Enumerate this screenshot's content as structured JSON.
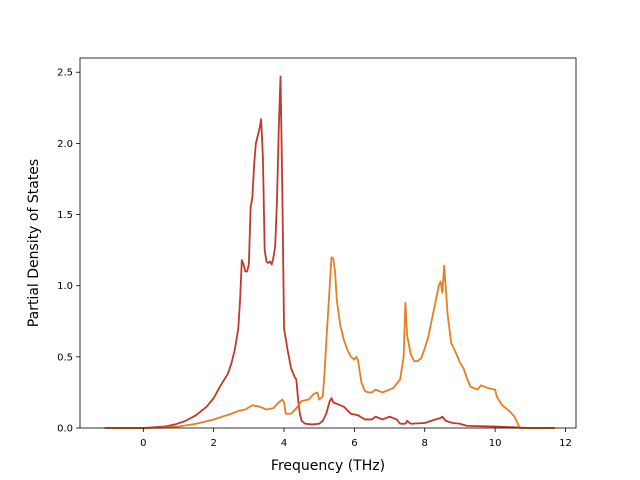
{
  "chart_data": {
    "type": "line",
    "title": "",
    "xlabel": "Frequency (THz)",
    "ylabel": "Partial Density of States",
    "xlim": [
      -1.8,
      12.3
    ],
    "ylim": [
      0,
      2.6
    ],
    "x_ticks": [
      0,
      2,
      4,
      6,
      8,
      10,
      12
    ],
    "y_ticks": [
      0.0,
      0.5,
      1.0,
      1.5,
      2.0,
      2.5
    ],
    "x_tick_labels": [
      "0",
      "2",
      "4",
      "6",
      "8",
      "10",
      "12"
    ],
    "y_tick_labels": [
      "0.0",
      "0.5",
      "1.0",
      "1.5",
      "2.0",
      "2.5"
    ],
    "grid": false,
    "legend": "none",
    "series": [
      {
        "color": "#c0392b",
        "points": [
          [
            -1.1,
            0.0
          ],
          [
            0.0,
            0.0
          ],
          [
            0.3,
            0.005
          ],
          [
            0.6,
            0.01
          ],
          [
            0.9,
            0.025
          ],
          [
            1.2,
            0.05
          ],
          [
            1.5,
            0.09
          ],
          [
            1.8,
            0.15
          ],
          [
            2.0,
            0.21
          ],
          [
            2.2,
            0.3
          ],
          [
            2.4,
            0.38
          ],
          [
            2.5,
            0.45
          ],
          [
            2.6,
            0.55
          ],
          [
            2.7,
            0.7
          ],
          [
            2.75,
            0.9
          ],
          [
            2.8,
            1.18
          ],
          [
            2.85,
            1.15
          ],
          [
            2.9,
            1.1
          ],
          [
            2.95,
            1.1
          ],
          [
            3.0,
            1.15
          ],
          [
            3.05,
            1.55
          ],
          [
            3.1,
            1.62
          ],
          [
            3.15,
            1.85
          ],
          [
            3.2,
            2.0
          ],
          [
            3.25,
            2.05
          ],
          [
            3.3,
            2.1
          ],
          [
            3.35,
            2.17
          ],
          [
            3.4,
            1.9
          ],
          [
            3.45,
            1.25
          ],
          [
            3.5,
            1.17
          ],
          [
            3.55,
            1.16
          ],
          [
            3.6,
            1.17
          ],
          [
            3.65,
            1.15
          ],
          [
            3.7,
            1.2
          ],
          [
            3.75,
            1.28
          ],
          [
            3.8,
            1.6
          ],
          [
            3.85,
            2.1
          ],
          [
            3.9,
            2.47
          ],
          [
            3.95,
            1.7
          ],
          [
            4.0,
            0.7
          ],
          [
            4.1,
            0.55
          ],
          [
            4.2,
            0.42
          ],
          [
            4.3,
            0.36
          ],
          [
            4.35,
            0.34
          ],
          [
            4.4,
            0.2
          ],
          [
            4.45,
            0.1
          ],
          [
            4.5,
            0.05
          ],
          [
            4.6,
            0.03
          ],
          [
            4.8,
            0.025
          ],
          [
            5.0,
            0.03
          ],
          [
            5.1,
            0.05
          ],
          [
            5.2,
            0.1
          ],
          [
            5.3,
            0.19
          ],
          [
            5.35,
            0.21
          ],
          [
            5.4,
            0.18
          ],
          [
            5.5,
            0.17
          ],
          [
            5.7,
            0.15
          ],
          [
            5.9,
            0.1
          ],
          [
            6.1,
            0.09
          ],
          [
            6.3,
            0.06
          ],
          [
            6.5,
            0.06
          ],
          [
            6.6,
            0.08
          ],
          [
            6.8,
            0.06
          ],
          [
            7.0,
            0.08
          ],
          [
            7.2,
            0.06
          ],
          [
            7.3,
            0.03
          ],
          [
            7.45,
            0.03
          ],
          [
            7.5,
            0.05
          ],
          [
            7.6,
            0.03
          ],
          [
            8.0,
            0.035
          ],
          [
            8.3,
            0.06
          ],
          [
            8.45,
            0.07
          ],
          [
            8.5,
            0.08
          ],
          [
            8.6,
            0.05
          ],
          [
            8.8,
            0.035
          ],
          [
            9.0,
            0.03
          ],
          [
            9.2,
            0.015
          ],
          [
            10.0,
            0.01
          ],
          [
            10.5,
            0.005
          ],
          [
            11.0,
            0.0
          ],
          [
            11.7,
            0.0
          ]
        ]
      },
      {
        "color": "#e67e22",
        "points": [
          [
            -1.1,
            0.0
          ],
          [
            0.0,
            0.0
          ],
          [
            0.5,
            0.002
          ],
          [
            1.0,
            0.01
          ],
          [
            1.5,
            0.03
          ],
          [
            2.0,
            0.06
          ],
          [
            2.5,
            0.1
          ],
          [
            2.7,
            0.12
          ],
          [
            2.9,
            0.13
          ],
          [
            3.1,
            0.16
          ],
          [
            3.3,
            0.15
          ],
          [
            3.5,
            0.13
          ],
          [
            3.7,
            0.14
          ],
          [
            3.85,
            0.18
          ],
          [
            3.95,
            0.2
          ],
          [
            4.0,
            0.18
          ],
          [
            4.05,
            0.1
          ],
          [
            4.2,
            0.1
          ],
          [
            4.35,
            0.14
          ],
          [
            4.5,
            0.19
          ],
          [
            4.7,
            0.2
          ],
          [
            4.85,
            0.24
          ],
          [
            4.95,
            0.25
          ],
          [
            5.0,
            0.2
          ],
          [
            5.1,
            0.22
          ],
          [
            5.15,
            0.38
          ],
          [
            5.2,
            0.6
          ],
          [
            5.25,
            0.8
          ],
          [
            5.3,
            1.0
          ],
          [
            5.35,
            1.2
          ],
          [
            5.4,
            1.19
          ],
          [
            5.45,
            1.1
          ],
          [
            5.5,
            0.9
          ],
          [
            5.6,
            0.72
          ],
          [
            5.7,
            0.62
          ],
          [
            5.8,
            0.55
          ],
          [
            5.9,
            0.5
          ],
          [
            6.0,
            0.48
          ],
          [
            6.05,
            0.5
          ],
          [
            6.1,
            0.48
          ],
          [
            6.2,
            0.32
          ],
          [
            6.3,
            0.26
          ],
          [
            6.4,
            0.25
          ],
          [
            6.5,
            0.25
          ],
          [
            6.6,
            0.27
          ],
          [
            6.7,
            0.26
          ],
          [
            6.8,
            0.25
          ],
          [
            6.9,
            0.26
          ],
          [
            7.0,
            0.27
          ],
          [
            7.1,
            0.28
          ],
          [
            7.2,
            0.31
          ],
          [
            7.3,
            0.34
          ],
          [
            7.4,
            0.5
          ],
          [
            7.45,
            0.88
          ],
          [
            7.5,
            0.65
          ],
          [
            7.6,
            0.52
          ],
          [
            7.7,
            0.47
          ],
          [
            7.8,
            0.47
          ],
          [
            7.9,
            0.49
          ],
          [
            8.0,
            0.56
          ],
          [
            8.1,
            0.64
          ],
          [
            8.2,
            0.76
          ],
          [
            8.3,
            0.88
          ],
          [
            8.4,
            1.0
          ],
          [
            8.45,
            1.03
          ],
          [
            8.5,
            0.95
          ],
          [
            8.55,
            1.14
          ],
          [
            8.6,
            0.98
          ],
          [
            8.65,
            0.8
          ],
          [
            8.75,
            0.6
          ],
          [
            8.9,
            0.52
          ],
          [
            9.0,
            0.46
          ],
          [
            9.1,
            0.42
          ],
          [
            9.2,
            0.35
          ],
          [
            9.3,
            0.29
          ],
          [
            9.5,
            0.27
          ],
          [
            9.6,
            0.3
          ],
          [
            9.7,
            0.29
          ],
          [
            9.8,
            0.28
          ],
          [
            10.0,
            0.27
          ],
          [
            10.05,
            0.22
          ],
          [
            10.2,
            0.16
          ],
          [
            10.4,
            0.12
          ],
          [
            10.55,
            0.08
          ],
          [
            10.65,
            0.03
          ],
          [
            10.7,
            0.0
          ],
          [
            11.7,
            0.0
          ]
        ]
      }
    ]
  }
}
